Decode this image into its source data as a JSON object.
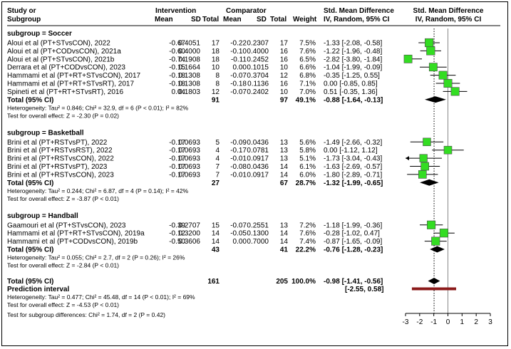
{
  "columns": {
    "study_line1": "Study or",
    "study_line2": "Subgroup",
    "intervention": "Intervention",
    "comparator": "Comparator",
    "mean": "Mean",
    "sd": "SD",
    "total": "Total",
    "weight": "Weight",
    "smd_line1": "Std. Mean Difference",
    "smd_line2": "IV, Random, 95% CI",
    "plot_line1": "Std. Mean Difference",
    "plot_line2": "IV, Random, 95% CI"
  },
  "chart_data": {
    "type": "forest",
    "xlim": [
      -3,
      3
    ],
    "xticks": [
      "-3",
      "-2",
      "-1",
      "0",
      "1",
      "2",
      "3"
    ],
    "reference_line": 0,
    "overall_line": -0.98,
    "colors": {
      "box": "#33dd22",
      "diamond": "#000000",
      "prediction": "#8b1a1a"
    },
    "subgroups": [
      {
        "header": "subgroup = Soccer",
        "studies": [
          {
            "name": "Aloui et al (PT+STvsCON), 2022",
            "m1": "-0.67",
            "sd1": "0.4051",
            "n1": "17",
            "m2": "-0.22",
            "sd2": "0.2307",
            "n2": "17",
            "weight": "7.5%",
            "ci": "-1.33 [-2.08, -0.58]",
            "smd": -1.33,
            "lo": -2.08,
            "hi": -0.58
          },
          {
            "name": "Aloui et al (PT+CODvsCON), 2021a",
            "m1": "-0.60",
            "sd1": "0.4000",
            "n1": "18",
            "m2": "-0.10",
            "sd2": "0.4000",
            "n2": "16",
            "weight": "7.6%",
            "ci": "-1.22 [-1.96, -0.48]",
            "smd": -1.22,
            "lo": -1.96,
            "hi": -0.48
          },
          {
            "name": "Aloui et al (PT+STvsCON), 2021b",
            "m1": "-0.74",
            "sd1": "0.1908",
            "n1": "18",
            "m2": "-0.11",
            "sd2": "0.2452",
            "n2": "16",
            "weight": "6.5%",
            "ci": "-2.82 [-3.80, -1.84]",
            "smd": -2.82,
            "lo": -3.8,
            "hi": -1.84
          },
          {
            "name": "Derrara et al (PT+CODvsCON), 2023",
            "m1": "-0.15",
            "sd1": "0.1664",
            "n1": "10",
            "m2": "0.00",
            "sd2": "0.1015",
            "n2": "10",
            "weight": "6.6%",
            "ci": "-1.04 [-1.99, -0.09]",
            "smd": -1.04,
            "lo": -1.99,
            "hi": -0.09
          },
          {
            "name": "Hammami et al (PT+RT+STvsCON), 2017",
            "m1": "-0.18",
            "sd1": "0.1308",
            "n1": "8",
            "m2": "-0.07",
            "sd2": "0.3704",
            "n2": "12",
            "weight": "6.8%",
            "ci": "-0.35 [-1.25, 0.55]",
            "smd": -0.35,
            "lo": -1.25,
            "hi": 0.55
          },
          {
            "name": "Hammami et al (PT+RT+STvsRT), 2017",
            "m1": "-0.18",
            "sd1": "0.1308",
            "n1": "8",
            "m2": "-0.18",
            "sd2": "0.1136",
            "n2": "16",
            "weight": "7.1%",
            "ci": "0.00 [-0.85, 0.85]",
            "smd": 0.0,
            "lo": -0.85,
            "hi": 0.85
          },
          {
            "name": "Spineti et al (PT+RT+STvsRT), 2016",
            "m1": "0.04",
            "sd1": "0.1803",
            "n1": "12",
            "m2": "-0.07",
            "sd2": "0.2402",
            "n2": "10",
            "weight": "7.0%",
            "ci": "0.51 [-0.35, 1.36]",
            "smd": 0.51,
            "lo": -0.35,
            "hi": 1.36
          }
        ],
        "total_label": "Total (95% CI)",
        "total_n1": "91",
        "total_n2": "97",
        "total_weight": "49.1%",
        "total_ci": "-0.88 [-1.64, -0.13]",
        "total": {
          "est": -0.88,
          "lo": -1.64,
          "hi": -0.13
        },
        "heterogeneity": "Heterogeneity: Tau² = 0.846; Chi² = 32.9, df = 6 (P < 0.01); I² = 82%",
        "overall_test": "Test for overall effect: Z = -2.30 (P = 0.02)"
      },
      {
        "header": "subgroup = Basketball",
        "studies": [
          {
            "name": "Brini et al (PT+RSTvsPT), 2022",
            "m1": "-0.17",
            "sd1": "0.0693",
            "n1": "5",
            "m2": "-0.09",
            "sd2": "0.0436",
            "n2": "13",
            "weight": "5.6%",
            "ci": "-1.49 [-2.66, -0.32]",
            "smd": -1.49,
            "lo": -2.66,
            "hi": -0.32
          },
          {
            "name": "Brini et al (PT+RSTvsRST), 2022",
            "m1": "-0.17",
            "sd1": "0.0693",
            "n1": "4",
            "m2": "-0.17",
            "sd2": "0.0781",
            "n2": "13",
            "weight": "5.8%",
            "ci": "0.00 [-1.12, 1.12]",
            "smd": 0.0,
            "lo": -1.12,
            "hi": 1.12
          },
          {
            "name": "Brini et al (PT+RSTvsCON), 2022",
            "m1": "-0.17",
            "sd1": "0.0693",
            "n1": "4",
            "m2": "-0.01",
            "sd2": "0.0917",
            "n2": "13",
            "weight": "5.1%",
            "ci": "-1.73 [-3.04, -0.43]",
            "smd": -1.73,
            "lo": -3.04,
            "hi": -0.43
          },
          {
            "name": "Brini et al (PT+RSTvsPT), 2023",
            "m1": "-0.17",
            "sd1": "0.0693",
            "n1": "7",
            "m2": "-0.08",
            "sd2": "0.0436",
            "n2": "14",
            "weight": "6.1%",
            "ci": "-1.63 [-2.69, -0.57]",
            "smd": -1.63,
            "lo": -2.69,
            "hi": -0.57
          },
          {
            "name": "Brini et al (PT+RSTvsCON), 2023",
            "m1": "-0.17",
            "sd1": "0.0693",
            "n1": "7",
            "m2": "-0.01",
            "sd2": "0.0917",
            "n2": "14",
            "weight": "6.0%",
            "ci": "-1.80 [-2.89, -0.71]",
            "smd": -1.8,
            "lo": -2.89,
            "hi": -0.71
          }
        ],
        "total_label": "Total (95% CI)",
        "total_n1": "27",
        "total_n2": "67",
        "total_weight": "28.7%",
        "total_ci": "-1.32 [-1.99, -0.65]",
        "total": {
          "est": -1.32,
          "lo": -1.99,
          "hi": -0.65
        },
        "heterogeneity": "Heterogeneity: Tau² = 0.244; Chi² = 6.87, df = 4 (P = 0.14); I² = 42%",
        "overall_test": "Test for overall effect: Z = -3.87 (P < 0.01)"
      },
      {
        "header": "subgroup = Handball",
        "studies": [
          {
            "name": "Gaamouri et al (PT+STvsCON), 2023",
            "m1": "-0.39",
            "sd1": "0.2707",
            "n1": "15",
            "m2": "-0.07",
            "sd2": "0.2551",
            "n2": "13",
            "weight": "7.2%",
            "ci": "-1.18 [-1.99, -0.36]",
            "smd": -1.18,
            "lo": -1.99,
            "hi": -0.36
          },
          {
            "name": "Hammami et al (PT+RT+STvsCON), 2019a",
            "m1": "-0.12",
            "sd1": "0.3200",
            "n1": "14",
            "m2": "-0.05",
            "sd2": "0.1300",
            "n2": "14",
            "weight": "7.6%",
            "ci": "-0.28 [-1.02, 0.47]",
            "smd": -0.28,
            "lo": -1.02,
            "hi": 0.47
          },
          {
            "name": "Hammami et al (PT+CODvsCON), 2019b",
            "m1": "-0.50",
            "sd1": "0.3606",
            "n1": "14",
            "m2": "0.00",
            "sd2": "0.7000",
            "n2": "14",
            "weight": "7.4%",
            "ci": "-0.87 [-1.65, -0.09]",
            "smd": -0.87,
            "lo": -1.65,
            "hi": -0.09
          }
        ],
        "total_label": "Total (95% CI)",
        "total_n1": "43",
        "total_n2": "41",
        "total_weight": "22.2%",
        "total_ci": "-0.76 [-1.28, -0.23]",
        "total": {
          "est": -0.76,
          "lo": -1.28,
          "hi": -0.23
        },
        "heterogeneity": "Heterogeneity: Tau² = 0.055; Chi² = 2.7, df = 2 (P = 0.26); I² = 26%",
        "overall_test": "Test for overall effect: Z = -2.84 (P < 0.01)"
      }
    ],
    "overall": {
      "label": "Total (95% CI)",
      "n1": "161",
      "n2": "205",
      "weight": "100.0%",
      "ci": "-0.98 [-1.41, -0.56]",
      "est": -0.98,
      "lo": -1.41,
      "hi": -0.56,
      "prediction_label": "Prediction interval",
      "prediction_ci": "[-2.55, 0.58]",
      "prediction_lo": -2.55,
      "prediction_hi": 0.58,
      "heterogeneity": "Heterogeneity: Tau² = 0.477; Chi² = 45.48, df = 14 (P < 0.01); I² = 69%",
      "overall_test": "Test for overall effect: Z = -4.53 (P < 0.01)",
      "subgroup_test": "Test for subgroup differences: Chi² = 1.74, df = 2 (P = 0.42)"
    }
  }
}
